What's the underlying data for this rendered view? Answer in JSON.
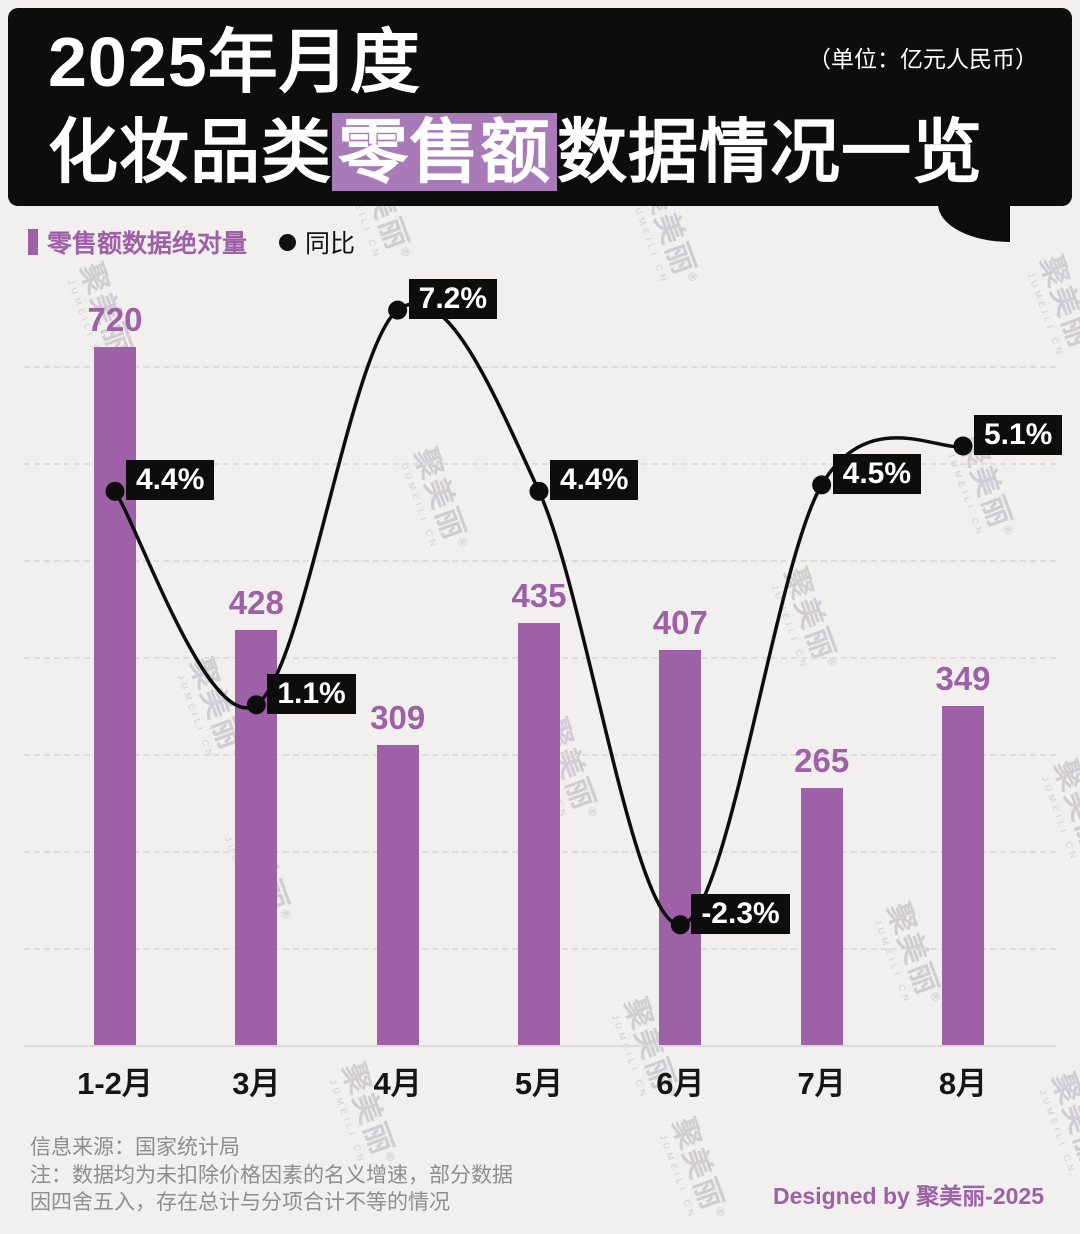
{
  "header": {
    "title_line1": "2025年月度",
    "title_line2_prefix": "化妆品类",
    "title_line2_highlight": "零售额",
    "title_line2_suffix": "数据情况一览",
    "unit_note": "（单位：亿元人民币）",
    "bg_color": "#0d0d0d",
    "highlight_color": "#a97ab8"
  },
  "legend": {
    "bars_label": "零售额数据绝对量",
    "line_label": "同比"
  },
  "chart_data": {
    "type": "bar+line",
    "title": "2025年月度化妆品类零售额数据情况一览",
    "unit": "亿元人民币",
    "categories": [
      "1-2月",
      "3月",
      "4月",
      "5月",
      "6月",
      "7月",
      "8月"
    ],
    "series": [
      {
        "name": "零售额数据绝对量",
        "type": "bar",
        "unit": "亿元人民币",
        "values": [
          720,
          428,
          309,
          435,
          407,
          265,
          349
        ]
      },
      {
        "name": "同比",
        "type": "line",
        "unit": "%",
        "values": [
          4.4,
          1.1,
          7.2,
          4.4,
          -2.3,
          4.5,
          5.1
        ],
        "labels": [
          "4.4%",
          "1.1%",
          "7.2%",
          "4.4%",
          "-2.3%",
          "4.5%",
          "5.1%"
        ]
      }
    ],
    "bar_color": "#9e61a7",
    "line_color": "#0d0d0d",
    "grid": "horizontal-dashed",
    "legend_position": "top-left",
    "ylim_bar": [
      0,
      780
    ]
  },
  "footer": {
    "source": "信息来源：国家统计局",
    "note_line1": "注：数据均为未扣除价格因素的名义增速，部分数据",
    "note_line2": "因四舍五入，存在总计与分项合计不等的情况",
    "credit": "Designed by 聚美丽-2025"
  },
  "watermark": {
    "text": "聚美丽",
    "reg": "®",
    "sub": "JUMEILI.CN"
  }
}
